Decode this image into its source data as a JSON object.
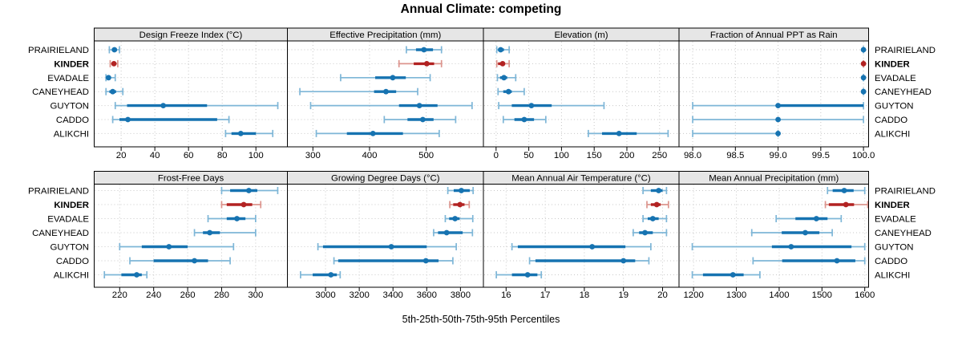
{
  "title": "Annual Climate: competing",
  "caption": "5th-25th-50th-75th-95th Percentiles",
  "colors": {
    "blue": "#1673b1",
    "blue_light": "#7eb6d7",
    "red": "#b22222",
    "red_light": "#dc948d",
    "grid": "#c8c8c8",
    "header_bg": "#e6e6e6",
    "border": "#000000"
  },
  "chart_data": {
    "type": "dotplot-percentiles",
    "percentile_labels": [
      "5th",
      "25th",
      "50th",
      "75th",
      "95th"
    ],
    "categories": [
      "PRAIRIELAND",
      "KINDER",
      "EVADALE",
      "CANEYHEAD",
      "GUYTON",
      "CADDO",
      "ALIKCHI"
    ],
    "highlighted_category": "KINDER",
    "panels": [
      {
        "title": "Design Freeze Index (°C)",
        "band": 0,
        "col": 0,
        "domain": [
          4,
          118.7
        ],
        "ticks": [
          20,
          40,
          60,
          80,
          100
        ],
        "tick_labels": [
          "20",
          "40",
          "60",
          "80",
          "100"
        ],
        "series": [
          [
            13,
            14.5,
            16,
            17.5,
            19
          ],
          [
            13.5,
            14.5,
            15.7,
            17,
            18
          ],
          [
            11,
            11.5,
            12.5,
            14,
            16.5
          ],
          [
            11,
            13,
            15,
            17,
            21
          ],
          [
            16.5,
            23.5,
            45,
            71,
            113
          ],
          [
            15,
            19,
            24,
            77,
            84
          ],
          [
            82,
            85.5,
            91,
            100,
            110
          ]
        ]
      },
      {
        "title": "Effective Precipitation (mm)",
        "band": 0,
        "col": 1,
        "domain": [
          255,
          601
        ],
        "ticks": [
          300,
          400,
          500
        ],
        "tick_labels": [
          "300",
          "400",
          "500"
        ],
        "series": [
          [
            465,
            482,
            496,
            512,
            527
          ],
          [
            452,
            478,
            501,
            514,
            527
          ],
          [
            349,
            410,
            441,
            464,
            507
          ],
          [
            277,
            408,
            429,
            447,
            485
          ],
          [
            296,
            452,
            488,
            520,
            581
          ],
          [
            426,
            467,
            494,
            513,
            552
          ],
          [
            306,
            360,
            406,
            459,
            523
          ]
        ]
      },
      {
        "title": "Elevation (m)",
        "band": 0,
        "col": 2,
        "domain": [
          -19.4,
          279.7
        ],
        "ticks": [
          0,
          50,
          100,
          150,
          200,
          250
        ],
        "tick_labels": [
          "0",
          "50",
          "100",
          "150",
          "200",
          "250"
        ],
        "series": [
          [
            1,
            3,
            7,
            12,
            20
          ],
          [
            1,
            3,
            10,
            13,
            20
          ],
          [
            2,
            6,
            12,
            17,
            30
          ],
          [
            3,
            11,
            19,
            24,
            43
          ],
          [
            4,
            24,
            54,
            85,
            165
          ],
          [
            11,
            28,
            43,
            58,
            76
          ],
          [
            141,
            162,
            188,
            215,
            263
          ]
        ]
      },
      {
        "title": "Fraction of Annual PPT as Rain",
        "band": 0,
        "col": 3,
        "domain": [
          97.84,
          100.06
        ],
        "ticks": [
          98,
          98.5,
          99,
          99.5,
          100
        ],
        "tick_labels": [
          "98.0",
          "98.5",
          "99.0",
          "99.5",
          "100.0"
        ],
        "series": [
          [
            100,
            100,
            100,
            100,
            100
          ],
          [
            100,
            100,
            100,
            100,
            100
          ],
          [
            100,
            100,
            100,
            100,
            100
          ],
          [
            100,
            100,
            100,
            100,
            100
          ],
          [
            98,
            99,
            99,
            100,
            100
          ],
          [
            98,
            99,
            99,
            99,
            100
          ],
          [
            98,
            99,
            99,
            99,
            99
          ]
        ]
      },
      {
        "title": "Frost-Free Days",
        "band": 1,
        "col": 0,
        "domain": [
          205,
          318.7
        ],
        "ticks": [
          220,
          240,
          260,
          280,
          300
        ],
        "tick_labels": [
          "220",
          "240",
          "260",
          "280",
          "300"
        ],
        "series": [
          [
            280,
            285,
            296,
            301,
            313
          ],
          [
            280,
            283,
            293,
            298,
            303
          ],
          [
            272,
            283,
            289,
            294,
            300
          ],
          [
            264,
            269,
            273,
            279,
            300
          ],
          [
            220,
            233,
            249,
            260,
            287
          ],
          [
            226,
            240,
            264,
            272,
            285
          ],
          [
            211,
            221,
            230,
            233,
            236
          ]
        ]
      },
      {
        "title": "Growing Degree Days (°C)",
        "band": 1,
        "col": 1,
        "domain": [
          2774,
          3936
        ],
        "ticks": [
          3000,
          3200,
          3400,
          3600,
          3800
        ],
        "tick_labels": [
          "3000",
          "3200",
          "3400",
          "3600",
          "3800"
        ],
        "series": [
          [
            3725,
            3760,
            3805,
            3855,
            3875
          ],
          [
            3737,
            3757,
            3797,
            3824,
            3852
          ],
          [
            3710,
            3733,
            3768,
            3795,
            3873
          ],
          [
            3641,
            3667,
            3718,
            3813,
            3871
          ],
          [
            2955,
            2985,
            3390,
            3600,
            3775
          ],
          [
            3050,
            3075,
            3595,
            3670,
            3755
          ],
          [
            2852,
            2924,
            3032,
            3067,
            3087
          ]
        ]
      },
      {
        "title": "Mean Annual Air Temperature (°C)",
        "band": 1,
        "col": 2,
        "domain": [
          15.42,
          20.42
        ],
        "ticks": [
          16,
          17,
          18,
          19,
          20
        ],
        "tick_labels": [
          "16",
          "17",
          "18",
          "19",
          "20"
        ],
        "series": [
          [
            19.5,
            19.7,
            19.9,
            20.0,
            20.1
          ],
          [
            19.6,
            19.7,
            19.85,
            19.95,
            20.15
          ],
          [
            19.5,
            19.62,
            19.75,
            19.9,
            20.1
          ],
          [
            19.25,
            19.4,
            19.55,
            19.75,
            20.1
          ],
          [
            16.15,
            16.3,
            18.2,
            19.05,
            19.7
          ],
          [
            16.6,
            16.75,
            19.0,
            19.3,
            19.65
          ],
          [
            15.75,
            16.15,
            16.55,
            16.8,
            16.9
          ]
        ]
      },
      {
        "title": "Mean Annual Precipitation (mm)",
        "band": 1,
        "col": 3,
        "domain": [
          1166,
          1609
        ],
        "ticks": [
          1200,
          1300,
          1400,
          1500,
          1600
        ],
        "tick_labels": [
          "1200",
          "1300",
          "1400",
          "1500",
          "1600"
        ],
        "series": [
          [
            1513,
            1525,
            1552,
            1574,
            1600
          ],
          [
            1508,
            1516,
            1556,
            1575,
            1607
          ],
          [
            1393,
            1438,
            1487,
            1513,
            1545
          ],
          [
            1336,
            1406,
            1461,
            1494,
            1524
          ],
          [
            1197,
            1383,
            1428,
            1569,
            1600
          ],
          [
            1339,
            1407,
            1535,
            1578,
            1600
          ],
          [
            1197,
            1222,
            1292,
            1317,
            1355
          ]
        ]
      }
    ]
  }
}
